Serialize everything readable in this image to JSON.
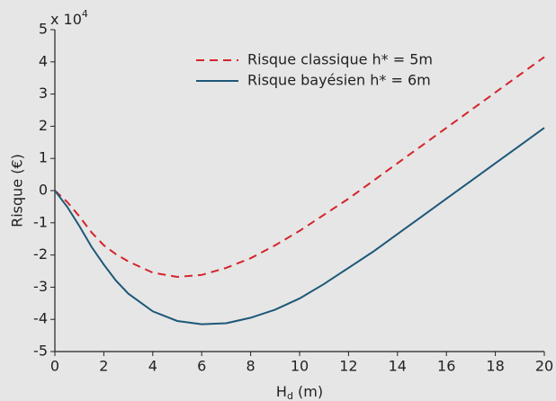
{
  "chart_data": {
    "type": "line",
    "multiplier": {
      "base": "x 10",
      "exponent": "4"
    },
    "xlabel": {
      "base": "H",
      "sub": "d",
      "rest": " (m)"
    },
    "ylabel": "Risque (€)",
    "x": [
      0,
      0.5,
      1,
      1.5,
      2,
      2.5,
      3,
      4,
      5,
      6,
      7,
      8,
      9,
      10,
      11,
      12,
      13,
      14,
      15,
      16,
      17,
      18,
      19,
      20
    ],
    "series": [
      {
        "name": "Risque classique h* = 5m",
        "color": "#d4242c",
        "dash": true,
        "values": [
          0,
          -0.35,
          -0.8,
          -1.3,
          -1.7,
          -1.98,
          -2.2,
          -2.55,
          -2.68,
          -2.62,
          -2.4,
          -2.1,
          -1.7,
          -1.25,
          -0.75,
          -0.25,
          0.3,
          0.85,
          1.4,
          1.95,
          2.5,
          3.05,
          3.6,
          4.15
        ]
      },
      {
        "name": "Risque bayésien h* = 6m",
        "color": "#1d5878",
        "dash": false,
        "values": [
          0,
          -0.5,
          -1.1,
          -1.75,
          -2.3,
          -2.8,
          -3.2,
          -3.75,
          -4.05,
          -4.15,
          -4.12,
          -3.95,
          -3.7,
          -3.35,
          -2.9,
          -2.4,
          -1.9,
          -1.35,
          -0.8,
          -0.25,
          0.3,
          0.85,
          1.4,
          1.95
        ]
      }
    ],
    "xlim": [
      0,
      20
    ],
    "xticks": [
      0,
      2,
      4,
      6,
      8,
      10,
      12,
      14,
      16,
      18,
      20
    ],
    "ylim": [
      -5,
      5
    ],
    "yticks": [
      -5,
      -4,
      -3,
      -2,
      -1,
      0,
      1,
      2,
      3,
      4,
      5
    ],
    "legend": "upper center"
  }
}
